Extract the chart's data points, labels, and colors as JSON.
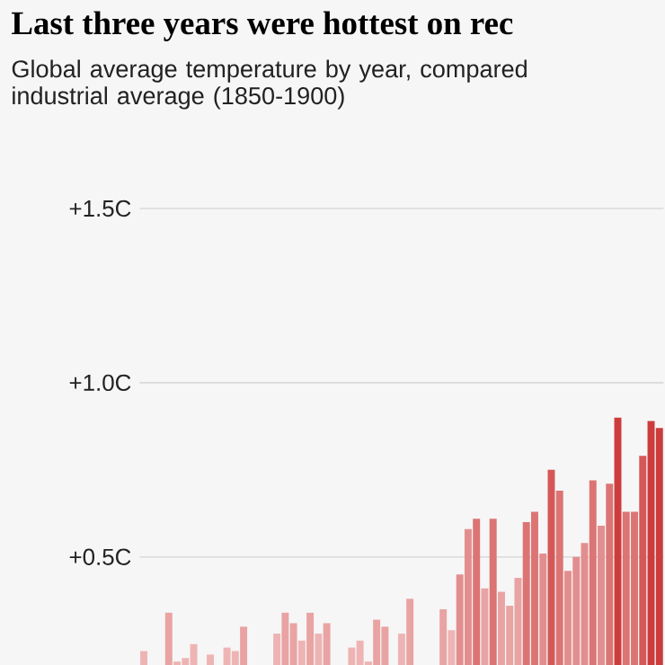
{
  "chart_data": {
    "type": "bar",
    "title": "Last three years were hottest on rec",
    "subtitle": "Global average temperature by year, compared industrial average (1850-1900)",
    "categories": [
      null,
      null,
      null,
      null,
      null,
      null,
      null,
      null,
      null,
      null,
      null,
      null,
      null,
      null,
      null,
      null,
      null,
      null,
      null,
      null,
      null,
      null,
      null,
      null,
      null,
      null,
      null,
      null,
      null,
      null,
      null,
      null,
      null,
      null,
      null,
      null,
      null,
      null,
      null,
      null,
      null,
      null,
      null,
      null,
      null,
      null,
      null,
      null,
      null,
      null,
      null,
      null,
      null,
      null,
      null,
      null,
      null,
      null,
      null,
      null,
      null,
      null,
      null
    ],
    "values": [
      0.23,
      null,
      null,
      0.34,
      0.2,
      0.21,
      0.25,
      null,
      0.22,
      null,
      0.24,
      0.23,
      0.3,
      null,
      null,
      null,
      0.28,
      0.34,
      0.31,
      0.26,
      0.34,
      0.28,
      0.31,
      null,
      null,
      0.24,
      0.26,
      0.2,
      0.32,
      0.3,
      null,
      0.28,
      0.38,
      null,
      null,
      null,
      0.35,
      0.29,
      0.45,
      0.58,
      0.61,
      0.41,
      0.61,
      0.4,
      0.36,
      0.44,
      0.6,
      0.63,
      0.51,
      0.75,
      0.69,
      0.46,
      0.5,
      0.54,
      0.72,
      0.59,
      0.71,
      0.9,
      0.63,
      0.63,
      0.79,
      0.89,
      0.87
    ],
    "colors": [
      "#eeb4b4",
      null,
      null,
      "#e9a3a3",
      "#eeb4b4",
      "#eeb4b4",
      "#eeb4b4",
      null,
      "#eeb4b4",
      null,
      "#eeb4b4",
      "#eeb4b4",
      "#e9a3a3",
      null,
      null,
      null,
      "#eeb4b4",
      "#e9a3a3",
      "#e9a3a3",
      "#eeb4b4",
      "#e9a3a3",
      "#eeb4b4",
      "#e9a3a3",
      null,
      null,
      "#eeb4b4",
      "#eeb4b4",
      "#eeb4b4",
      "#e9a3a3",
      "#e9a3a3",
      null,
      "#eeb4b4",
      "#e9a3a3",
      null,
      null,
      null,
      "#e9a3a3",
      "#eeb4b4",
      "#e38e8e",
      "#e38e8e",
      "#dc7474",
      "#e9a3a3",
      "#dc7474",
      "#e9a3a3",
      "#e9a3a3",
      "#e9a3a3",
      "#dc7474",
      "#dc7474",
      "#e38e8e",
      "#d55757",
      "#dc7474",
      "#e38e8e",
      "#e38e8e",
      "#e38e8e",
      "#dc7474",
      "#e38e8e",
      "#dc7474",
      "#cc3c3c",
      "#dc7474",
      "#dc7474",
      "#d55757",
      "#cc3c3c",
      "#cc3c3c"
    ],
    "ylim": [
      0.19,
      1.5
    ],
    "yticks": [
      {
        "value": 0.5,
        "label": "+0.5C"
      },
      {
        "value": 1.0,
        "label": "+1.0C"
      },
      {
        "value": 1.5,
        "label": "+1.5C"
      }
    ],
    "grid": "y",
    "tick_labels": "y"
  }
}
